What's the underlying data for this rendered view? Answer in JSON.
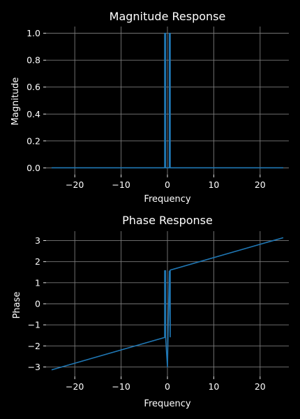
{
  "chart_data": [
    {
      "type": "line",
      "title": "Magnitude Response",
      "xlabel": "Frequency",
      "ylabel": "Magnitude",
      "xlim": [
        -26.2,
        26.2
      ],
      "ylim": [
        -0.05,
        1.05
      ],
      "xticks": [
        -20,
        -10,
        0,
        10,
        20
      ],
      "xtick_labels": [
        "−20",
        "−10",
        "0",
        "10",
        "20"
      ],
      "yticks": [
        0.0,
        0.2,
        0.4,
        0.6,
        0.8,
        1.0
      ],
      "ytick_labels": [
        "0.0",
        "0.2",
        "0.4",
        "0.6",
        "0.8",
        "1.0"
      ],
      "grid": true,
      "color": "#1f77b4",
      "x": [
        -25,
        -0.6,
        -0.6,
        -0.4,
        -0.4,
        0.4,
        0.4,
        0.6,
        0.6,
        25
      ],
      "y": [
        0,
        0,
        1,
        1,
        0,
        0,
        1,
        1,
        0,
        0
      ]
    },
    {
      "type": "line",
      "title": "Phase Response",
      "xlabel": "Frequency",
      "ylabel": "Phase",
      "xlim": [
        -26.2,
        26.2
      ],
      "ylim": [
        -3.45,
        3.45
      ],
      "xticks": [
        -20,
        -10,
        0,
        10,
        20
      ],
      "xtick_labels": [
        "−20",
        "−10",
        "0",
        "10",
        "20"
      ],
      "yticks": [
        -3,
        -2,
        -1,
        0,
        1,
        2,
        3
      ],
      "ytick_labels": [
        "−3",
        "−2",
        "−1",
        "0",
        "1",
        "2",
        "3"
      ],
      "grid": true,
      "color": "#1f77b4",
      "x": [
        -25,
        -0.6,
        -0.6,
        -0.4,
        -0.4,
        0,
        0,
        0.4,
        0.4,
        0.6,
        0.6,
        25
      ],
      "y": [
        -3.14,
        -1.6,
        1.57,
        1.57,
        -1.55,
        -3.0,
        -3.0,
        1.55,
        1.55,
        -1.57,
        1.6,
        3.14
      ]
    }
  ]
}
